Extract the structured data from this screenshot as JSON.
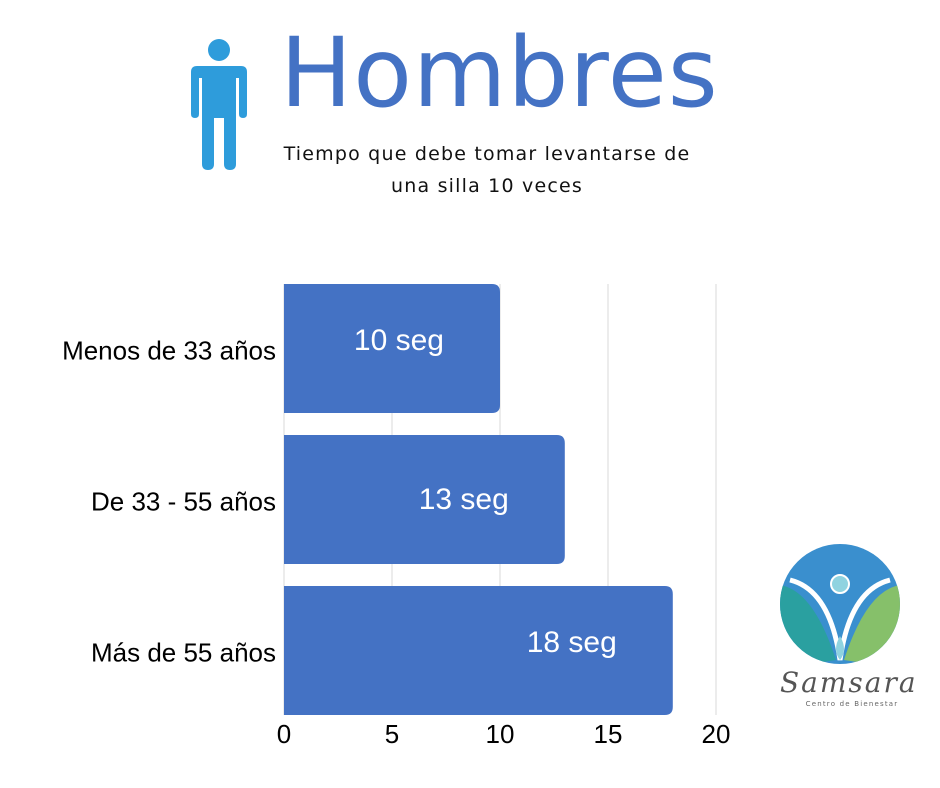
{
  "header": {
    "title": "Hombres",
    "subtitle": "Tiempo que debe tomar levantarse de una silla 10 veces",
    "icon": "person-icon"
  },
  "colors": {
    "title": "#4472c4",
    "bar": "#4472c4",
    "icon": "#2e9cdb",
    "grid": "#d9d9d9"
  },
  "chart_data": {
    "type": "bar",
    "orientation": "horizontal",
    "categories": [
      "Menos de 33 años",
      "De 33 - 55 años",
      "Más de 55 años"
    ],
    "values": [
      10,
      13,
      18
    ],
    "data_labels": [
      "10 seg",
      "13 seg",
      "18 seg"
    ],
    "xlim": [
      0,
      20
    ],
    "xticks": [
      0,
      5,
      10,
      15,
      20
    ],
    "grid": true
  },
  "logo": {
    "name": "Samsara",
    "tagline": "Centro de Bienestar"
  }
}
